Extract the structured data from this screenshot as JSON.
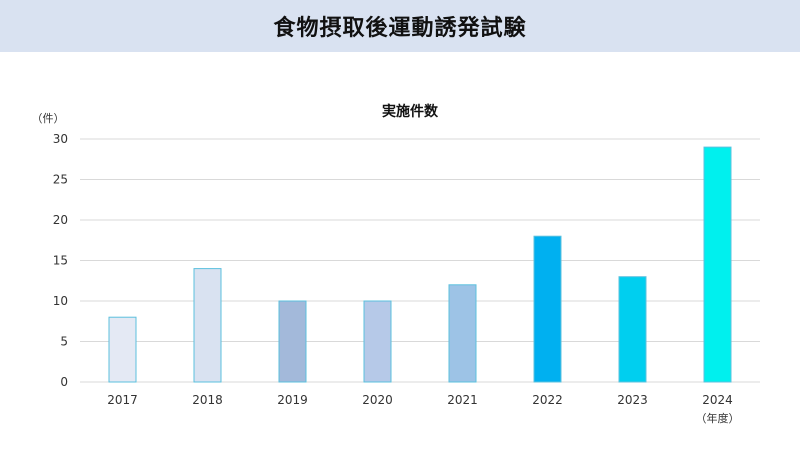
{
  "page": {
    "title": "食物摂取後運動誘発試験"
  },
  "chart_data": {
    "type": "bar",
    "title": "実施件数",
    "ylabel": "（件）",
    "xlabel": "（年度）",
    "categories": [
      "2017",
      "2018",
      "2019",
      "2020",
      "2021",
      "2022",
      "2023",
      "2024"
    ],
    "values": [
      8,
      14,
      10,
      10,
      12,
      18,
      13,
      29
    ],
    "ylim": [
      0,
      30
    ],
    "yticks": [
      0,
      5,
      10,
      15,
      20,
      25,
      30
    ],
    "grid": true,
    "legend": "none",
    "colors": {
      "fills": [
        "#e4e9f4",
        "#d9e2f1",
        "#a3b9da",
        "#b6c9e8",
        "#9dc3e6",
        "#00b0f0",
        "#00cfef",
        "#00f0ee"
      ],
      "border": "#5bc0de",
      "gridline": "#d9d9d9",
      "title_band": "#d9e2f1"
    }
  }
}
